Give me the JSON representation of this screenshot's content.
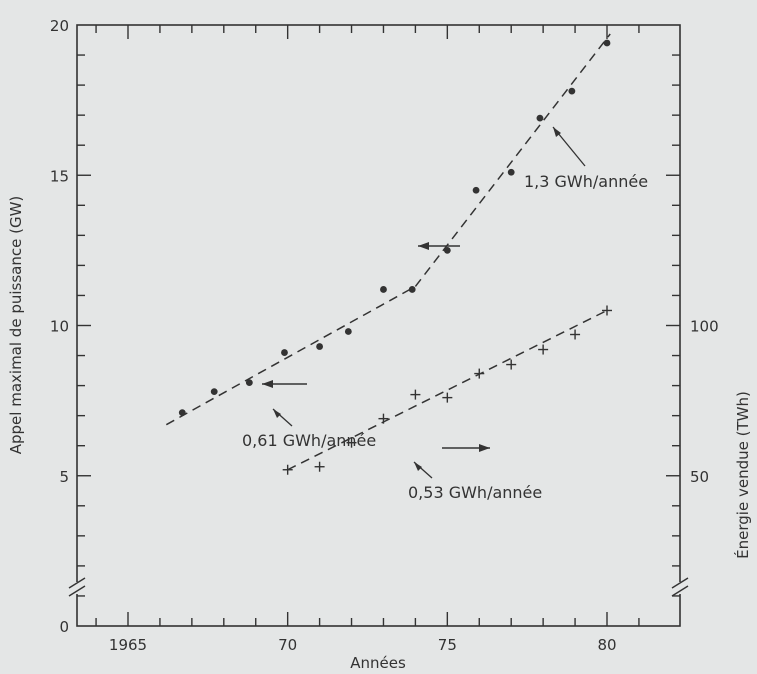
{
  "chart_data": {
    "type": "scatter",
    "xlabel": "Années",
    "ylabel_left": "Appel maximal de puissance (GW)",
    "ylabel_right": "Énergie vendue (TWh)",
    "xlim": [
      1963.5,
      1982
    ],
    "ylim_left": [
      0,
      20
    ],
    "ylim_right": [
      0,
      200
    ],
    "x_ticks": [
      {
        "value": 1965,
        "label": "1965"
      },
      {
        "value": 1970,
        "label": "70"
      },
      {
        "value": 1975,
        "label": "75"
      },
      {
        "value": 1980,
        "label": "80"
      }
    ],
    "y_ticks_left": [
      {
        "value": 0,
        "label": "0"
      },
      {
        "value": 5,
        "label": "5"
      },
      {
        "value": 10,
        "label": "10"
      },
      {
        "value": 15,
        "label": "15"
      },
      {
        "value": 20,
        "label": "20"
      }
    ],
    "y_ticks_right": [
      {
        "value": 50,
        "label": "50"
      },
      {
        "value": 100,
        "label": "100"
      }
    ],
    "grid": false,
    "series": [
      {
        "marker": "dot",
        "axis": "left",
        "x": [
          1966.7,
          1967.7,
          1968.8,
          1969.9,
          1971,
          1971.9,
          1973,
          1973.9,
          1975,
          1975.9,
          1977,
          1977.9,
          1978.9,
          1980
        ],
        "y": [
          7.1,
          7.8,
          8.1,
          9.1,
          9.3,
          9.8,
          11.2,
          11.2,
          12.5,
          14.5,
          15.1,
          16.9,
          17.8,
          19.4
        ]
      },
      {
        "marker": "plus",
        "axis": "right",
        "x": [
          1970,
          1971,
          1972,
          1973,
          1974,
          1975,
          1976,
          1977,
          1978,
          1979,
          1980
        ],
        "y": [
          52,
          53,
          61,
          69,
          77,
          76,
          84,
          87,
          92,
          97,
          105
        ]
      }
    ],
    "trend_lines": [
      {
        "axis": "left",
        "x": [
          1966.2,
          1974
        ],
        "y": [
          6.7,
          11.3
        ]
      },
      {
        "axis": "left",
        "x": [
          1974,
          1980.1
        ],
        "y": [
          11.3,
          19.7
        ]
      },
      {
        "axis": "right",
        "x": [
          1970,
          1980
        ],
        "y": [
          52,
          105
        ]
      }
    ],
    "annotations": [
      {
        "text": "1,3 GWh/année"
      },
      {
        "text": "0,61 GWh/année"
      },
      {
        "text": "0,53 GWh/année"
      }
    ]
  }
}
